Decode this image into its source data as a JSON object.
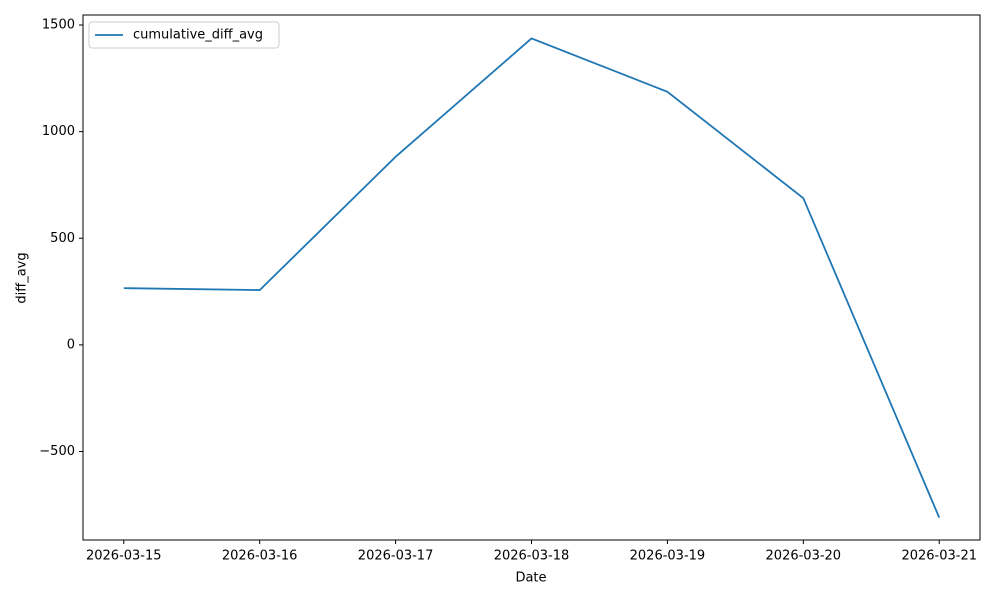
{
  "chart_data": {
    "type": "line",
    "x_label": "Date",
    "y_label": "diff_avg",
    "categories": [
      "2026-03-15",
      "2026-03-16",
      "2026-03-17",
      "2026-03-18",
      "2026-03-19",
      "2026-03-20",
      "2026-03-21"
    ],
    "series": [
      {
        "name": "cumulative_diff_avg",
        "color": "#1f77b4",
        "values": [
          266,
          257,
          882,
          1437,
          1187,
          688,
          -810
        ]
      }
    ],
    "ylim": [
      -915,
      1547
    ],
    "yticks": [
      {
        "value": -500,
        "label": "−500"
      },
      0,
      500,
      1000,
      1500
    ],
    "legend": "upper left"
  }
}
